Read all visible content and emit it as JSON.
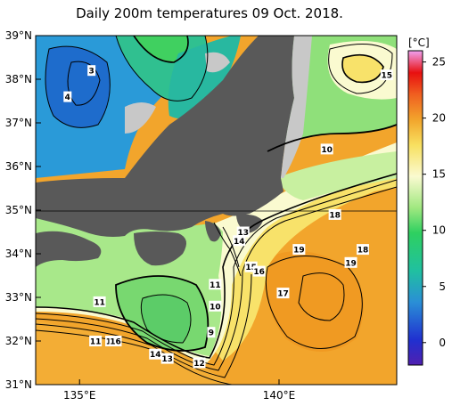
{
  "title": "Daily 200m temperatures 09 Oct. 2018.",
  "unit": "[°C]",
  "lat_labels": [
    "39°N",
    "38°N",
    "37°N",
    "36°N",
    "35°N",
    "34°N",
    "33°N",
    "32°N",
    "31°N"
  ],
  "lon_labels": [
    "135°E",
    "140°E"
  ],
  "colorbar_ticks": [
    "25",
    "20",
    "15",
    "10",
    "5",
    "0"
  ],
  "contour_labels": [
    {
      "text": "3",
      "lon": 135.3,
      "lat": 38.2
    },
    {
      "text": "4",
      "lon": 134.7,
      "lat": 37.6
    },
    {
      "text": "15",
      "lon": 142.7,
      "lat": 38.1
    },
    {
      "text": "10",
      "lon": 141.2,
      "lat": 36.4
    },
    {
      "text": "18",
      "lon": 141.4,
      "lat": 34.9
    },
    {
      "text": "13",
      "lon": 139.1,
      "lat": 34.5
    },
    {
      "text": "14",
      "lon": 139.0,
      "lat": 34.3
    },
    {
      "text": "19",
      "lon": 140.5,
      "lat": 34.1
    },
    {
      "text": "18",
      "lon": 142.1,
      "lat": 34.1
    },
    {
      "text": "19",
      "lon": 141.8,
      "lat": 33.8
    },
    {
      "text": "15",
      "lon": 139.3,
      "lat": 33.7
    },
    {
      "text": "16",
      "lon": 139.5,
      "lat": 33.6
    },
    {
      "text": "11",
      "lon": 138.4,
      "lat": 33.3
    },
    {
      "text": "17",
      "lon": 140.1,
      "lat": 33.1
    },
    {
      "text": "11",
      "lon": 135.5,
      "lat": 32.9
    },
    {
      "text": "10",
      "lon": 138.4,
      "lat": 32.8
    },
    {
      "text": "9",
      "lon": 138.3,
      "lat": 32.2
    },
    {
      "text": "11",
      "lon": 135.4,
      "lat": 32.0
    },
    {
      "text": "15",
      "lon": 135.8,
      "lat": 32.0
    },
    {
      "text": "16",
      "lon": 135.9,
      "lat": 32.0
    },
    {
      "text": "14",
      "lon": 136.9,
      "lat": 31.7
    },
    {
      "text": "13",
      "lon": 137.2,
      "lat": 31.6
    },
    {
      "text": "12",
      "lon": 138.0,
      "lat": 31.5
    }
  ],
  "colors": {
    "land": "#595959",
    "warm_sea": "#f2a52c",
    "mid_sea": "#a8e88a",
    "cold_sea": "#2a8fd6",
    "coldest": "#1e5ec8"
  }
}
